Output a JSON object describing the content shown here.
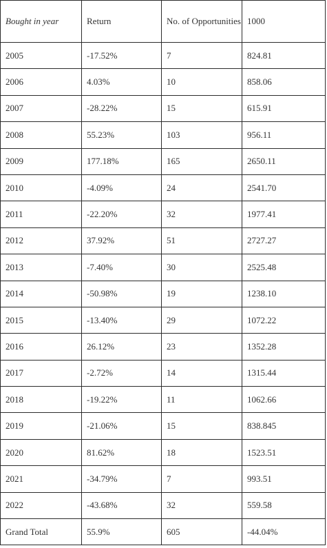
{
  "table": {
    "headers": {
      "year": "Bought in year",
      "return": "Return",
      "opportunities": "No. of Opportunities",
      "value": "1000"
    },
    "rows": [
      {
        "year": "2005",
        "return": "-17.52%",
        "opportunities": "7",
        "value": "824.81"
      },
      {
        "year": "2006",
        "return": "4.03%",
        "opportunities": "10",
        "value": "858.06"
      },
      {
        "year": "2007",
        "return": "-28.22%",
        "opportunities": "15",
        "value": "615.91"
      },
      {
        "year": "2008",
        "return": "55.23%",
        "opportunities": "103",
        "value": "956.11"
      },
      {
        "year": "2009",
        "return": "177.18%",
        "opportunities": "165",
        "value": "2650.11"
      },
      {
        "year": "2010",
        "return": "-4.09%",
        "opportunities": "24",
        "value": "2541.70"
      },
      {
        "year": "2011",
        "return": "-22.20%",
        "opportunities": "32",
        "value": "1977.41"
      },
      {
        "year": "2012",
        "return": "37.92%",
        "opportunities": "51",
        "value": "2727.27"
      },
      {
        "year": "2013",
        "return": "-7.40%",
        "opportunities": "30",
        "value": "2525.48"
      },
      {
        "year": "2014",
        "return": "-50.98%",
        "opportunities": "19",
        "value": "1238.10"
      },
      {
        "year": "2015",
        "return": "-13.40%",
        "opportunities": "29",
        "value": "1072.22"
      },
      {
        "year": "2016",
        "return": "26.12%",
        "opportunities": "23",
        "value": "1352.28"
      },
      {
        "year": "2017",
        "return": "-2.72%",
        "opportunities": "14",
        "value": "1315.44"
      },
      {
        "year": "2018",
        "return": "-19.22%",
        "opportunities": "11",
        "value": "1062.66"
      },
      {
        "year": "2019",
        "return": "-21.06%",
        "opportunities": "15",
        "value": "838.845"
      },
      {
        "year": "2020",
        "return": "81.62%",
        "opportunities": "18",
        "value": "1523.51"
      },
      {
        "year": "2021",
        "return": "-34.79%",
        "opportunities": "7",
        "value": "993.51"
      },
      {
        "year": "2022",
        "return": "-43.68%",
        "opportunities": "32",
        "value": "559.58"
      }
    ],
    "total": {
      "label": "Grand Total",
      "return": "55.9%",
      "opportunities": "605",
      "value": "-44.04%"
    }
  }
}
